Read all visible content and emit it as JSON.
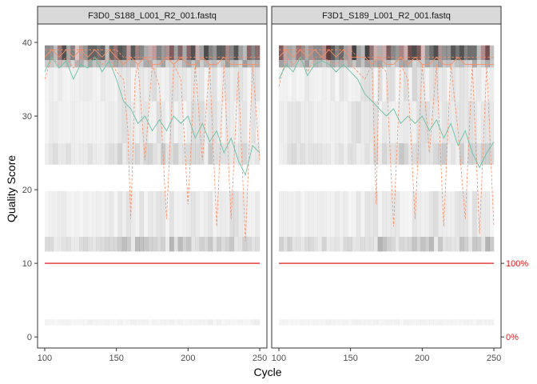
{
  "chart_data": {
    "type": "line",
    "xlabel": "Cycle",
    "ylabel": "Quality Score",
    "xlim": [
      95,
      255
    ],
    "ylim": [
      -1.5,
      42.5
    ],
    "x_ticks": [
      100,
      150,
      200,
      250
    ],
    "y_ticks": [
      0,
      10,
      20,
      30,
      40
    ],
    "right_axis_labels": [
      {
        "label": "100%",
        "y": 10
      },
      {
        "label": "0%",
        "y": 0
      }
    ],
    "colors": {
      "mean": "#66c2a5",
      "quartiles": "#fc8d62",
      "reads_fraction": "#e41a1c",
      "strip_bg": "#d9d9d9",
      "border": "#333333"
    },
    "panels": [
      {
        "title": "F3D0_S188_L001_R2_001.fastq",
        "mean": {
          "x": [
            100,
            105,
            110,
            115,
            120,
            125,
            130,
            135,
            140,
            145,
            150,
            155,
            160,
            165,
            170,
            175,
            180,
            185,
            190,
            195,
            200,
            205,
            210,
            215,
            220,
            225,
            230,
            235,
            240,
            245,
            250
          ],
          "y": [
            36,
            38,
            36.5,
            37.5,
            35,
            37,
            36.5,
            38,
            36,
            37.5,
            35,
            32,
            31,
            29,
            30,
            28,
            29.5,
            28,
            30,
            29,
            30,
            27,
            29,
            26.5,
            28,
            25,
            27,
            24,
            22,
            26,
            25
          ]
        },
        "q25": {
          "x": [
            100,
            105,
            110,
            115,
            120,
            125,
            130,
            135,
            140,
            145,
            150,
            155,
            158,
            160,
            163,
            165,
            170,
            175,
            180,
            185,
            190,
            195,
            200,
            205,
            210,
            215,
            220,
            225,
            230,
            235,
            240,
            245,
            250
          ],
          "y": [
            35,
            38,
            37,
            38,
            36.5,
            38,
            37.5,
            38,
            37,
            38,
            36,
            35,
            28,
            16,
            35,
            37,
            24,
            37,
            34,
            16,
            37,
            35,
            18,
            37,
            24,
            37,
            15,
            37,
            16,
            36,
            13,
            37,
            24
          ]
        },
        "median": {
          "x": [
            100,
            105,
            110,
            115,
            120,
            125,
            130,
            135,
            140,
            145,
            150,
            155,
            160,
            165,
            170,
            175,
            180,
            185,
            190,
            195,
            200,
            205,
            210,
            215,
            220,
            225,
            230,
            235,
            240,
            245,
            250
          ],
          "y": [
            38,
            39,
            38,
            39,
            38,
            39,
            38,
            39,
            38,
            39,
            38,
            37,
            38,
            37,
            38,
            37,
            37,
            38,
            37,
            38,
            37,
            37,
            38,
            37,
            37,
            38,
            37,
            37,
            37,
            37,
            37
          ]
        },
        "q75": {
          "x": [
            100,
            105,
            110,
            115,
            120,
            125,
            130,
            135,
            140,
            145,
            150,
            155,
            160,
            165,
            170,
            175,
            180,
            185,
            190,
            195,
            200,
            205,
            210,
            215,
            220,
            225,
            230,
            235,
            240,
            245,
            250
          ],
          "y": [
            39,
            39,
            39,
            39,
            39,
            39,
            39,
            39,
            39,
            39,
            39,
            38,
            38,
            38,
            38,
            38,
            38,
            38,
            38,
            38,
            38,
            38,
            38,
            38,
            38,
            38,
            38,
            38,
            38,
            38,
            38
          ]
        },
        "reads_fraction": {
          "x": [
            100,
            250
          ],
          "y": [
            10,
            10
          ]
        }
      },
      {
        "title": "F3D1_S189_L001_R2_001.fastq",
        "mean": {
          "x": [
            100,
            105,
            110,
            115,
            120,
            125,
            130,
            135,
            140,
            145,
            150,
            155,
            160,
            165,
            170,
            175,
            180,
            185,
            190,
            195,
            200,
            205,
            210,
            215,
            220,
            225,
            230,
            235,
            240,
            245,
            250
          ],
          "y": [
            35,
            37,
            36,
            38,
            35.5,
            37,
            37.5,
            37,
            36,
            37,
            36,
            35,
            33,
            32,
            31,
            30,
            31,
            29,
            30,
            29,
            30,
            28,
            29.5,
            27,
            29,
            26,
            28,
            25,
            23,
            25,
            26.5
          ]
        },
        "q25": {
          "x": [
            100,
            105,
            110,
            115,
            120,
            125,
            130,
            135,
            140,
            145,
            150,
            155,
            160,
            165,
            168,
            170,
            175,
            180,
            185,
            190,
            195,
            200,
            205,
            210,
            215,
            220,
            225,
            230,
            235,
            240,
            245,
            250
          ],
          "y": [
            34,
            38,
            37,
            38,
            36,
            38,
            38,
            37.5,
            37,
            38,
            37,
            36,
            35,
            37,
            18,
            37,
            36,
            15,
            37,
            35,
            16,
            37,
            25,
            37,
            15,
            37,
            28,
            16,
            37,
            14,
            37,
            15
          ]
        },
        "median": {
          "x": [
            100,
            105,
            110,
            115,
            120,
            125,
            130,
            135,
            140,
            145,
            150,
            155,
            160,
            165,
            170,
            175,
            180,
            185,
            190,
            195,
            200,
            205,
            210,
            215,
            220,
            225,
            230,
            235,
            240,
            245,
            250
          ],
          "y": [
            38,
            39,
            38,
            39,
            38,
            39,
            38,
            39,
            38,
            39,
            38,
            38,
            38,
            37,
            38,
            37,
            37,
            38,
            37,
            38,
            37,
            37,
            38,
            37,
            37,
            38,
            37,
            37,
            37,
            37,
            37
          ]
        },
        "q75": {
          "x": [
            100,
            105,
            110,
            115,
            120,
            125,
            130,
            135,
            140,
            145,
            150,
            155,
            160,
            165,
            170,
            175,
            180,
            185,
            190,
            195,
            200,
            205,
            210,
            215,
            220,
            225,
            230,
            235,
            240,
            245,
            250
          ],
          "y": [
            39,
            39,
            39,
            39,
            39,
            39,
            39,
            39,
            39,
            39,
            39,
            38,
            38,
            38,
            38,
            38,
            38,
            38,
            38,
            38,
            38,
            38,
            38,
            38,
            38,
            38,
            38,
            38,
            38,
            38,
            38
          ]
        },
        "reads_fraction": {
          "x": [
            100,
            250
          ],
          "y": [
            10,
            10
          ]
        }
      }
    ]
  }
}
